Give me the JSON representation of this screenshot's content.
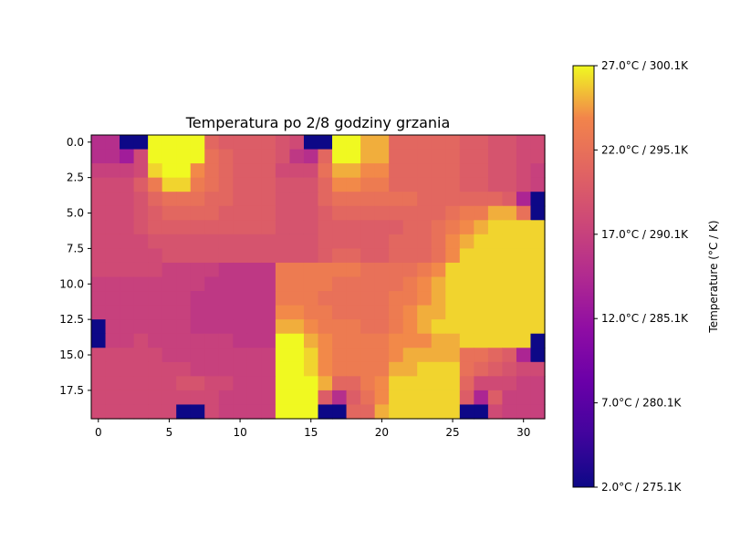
{
  "chart_data": {
    "type": "heatmap",
    "title": "Temperatura po 2/8 godziny grzania",
    "colormap": "plasma",
    "cols": 32,
    "rows": 20,
    "vmin": 2.0,
    "vmax": 27.0,
    "x_ticks": [
      0,
      5,
      10,
      15,
      20,
      25,
      30
    ],
    "x_tick_labels": [
      "0",
      "5",
      "10",
      "15",
      "20",
      "25",
      "30"
    ],
    "y_ticks": [
      0,
      2.5,
      5,
      7.5,
      10,
      12.5,
      15,
      17.5
    ],
    "y_tick_labels": [
      "0.0",
      "2.5",
      "5.0",
      "7.5",
      "10.0",
      "12.5",
      "15.0",
      "17.5"
    ],
    "colorbar": {
      "label": "Temperature (°C / K)",
      "ticks": [
        2.0,
        7.0,
        12.0,
        17.0,
        22.0,
        27.0
      ],
      "tick_labels": [
        "2.0°C / 275.1K",
        "7.0°C / 280.1K",
        "12.0°C / 285.1K",
        "17.0°C / 290.1K",
        "22.0°C / 295.1K",
        "27.0°C / 300.1K"
      ]
    },
    "values": [
      [
        15,
        15,
        2,
        2,
        27,
        27,
        27,
        27,
        21,
        20,
        20,
        20,
        20,
        19,
        18,
        2,
        2,
        27,
        27,
        25,
        25,
        21,
        21,
        21,
        21,
        21,
        20,
        20,
        19,
        19,
        18,
        18
      ],
      [
        15,
        15,
        13,
        18,
        27,
        27,
        27,
        27,
        22,
        21,
        20,
        20,
        20,
        19,
        16,
        15,
        21,
        27,
        27,
        25,
        25,
        21,
        21,
        21,
        21,
        21,
        20,
        20,
        19,
        19,
        18,
        18
      ],
      [
        17,
        17,
        17,
        18,
        26,
        27,
        27,
        24,
        22,
        21,
        20,
        20,
        20,
        18,
        18,
        18,
        22,
        25,
        25,
        24,
        24,
        21,
        21,
        21,
        21,
        21,
        20,
        20,
        19,
        19,
        18,
        17
      ],
      [
        18,
        18,
        18,
        20,
        23,
        26,
        26,
        23,
        22,
        21,
        20,
        20,
        20,
        19,
        19,
        19,
        21,
        24,
        24,
        23,
        23,
        21,
        21,
        21,
        21,
        21,
        20,
        20,
        19,
        19,
        18,
        17
      ],
      [
        18,
        18,
        18,
        19,
        21,
        22,
        22,
        22,
        21,
        21,
        20,
        20,
        20,
        19,
        19,
        19,
        21,
        22,
        22,
        22,
        22,
        22,
        22,
        21,
        21,
        21,
        21,
        21,
        21,
        20,
        14,
        2
      ],
      [
        18,
        18,
        18,
        19,
        20,
        21,
        21,
        21,
        21,
        20,
        20,
        20,
        20,
        19,
        19,
        19,
        20,
        21,
        21,
        21,
        21,
        21,
        21,
        21,
        21,
        22,
        23,
        23,
        25,
        25,
        22,
        2
      ],
      [
        18,
        18,
        18,
        19,
        20,
        20,
        20,
        20,
        20,
        20,
        20,
        20,
        20,
        19,
        19,
        19,
        20,
        20,
        20,
        20,
        20,
        20,
        21,
        21,
        22,
        23,
        24,
        25,
        26,
        26,
        26,
        26
      ],
      [
        18,
        18,
        18,
        18,
        19,
        19,
        19,
        19,
        19,
        19,
        19,
        19,
        19,
        19,
        19,
        19,
        20,
        20,
        20,
        20,
        20,
        21,
        21,
        21,
        22,
        24,
        25,
        26,
        26,
        26,
        26,
        26
      ],
      [
        18,
        18,
        18,
        18,
        18,
        19,
        19,
        19,
        19,
        19,
        19,
        19,
        19,
        19,
        19,
        19,
        20,
        21,
        21,
        20,
        20,
        21,
        21,
        21,
        22,
        24,
        26,
        26,
        26,
        26,
        26,
        26
      ],
      [
        18,
        18,
        18,
        18,
        18,
        17,
        17,
        17,
        17,
        16,
        16,
        16,
        16,
        23,
        23,
        23,
        23,
        23,
        23,
        22,
        22,
        22,
        22,
        23,
        24,
        26,
        26,
        26,
        26,
        26,
        26,
        26
      ],
      [
        17,
        17,
        17,
        17,
        17,
        17,
        17,
        17,
        16,
        16,
        16,
        16,
        16,
        23,
        23,
        23,
        23,
        22,
        22,
        22,
        22,
        22,
        23,
        24,
        25,
        26,
        26,
        26,
        26,
        26,
        26,
        26
      ],
      [
        17,
        17,
        17,
        17,
        17,
        17,
        17,
        16,
        16,
        16,
        16,
        16,
        16,
        23,
        23,
        23,
        22,
        22,
        22,
        22,
        22,
        23,
        23,
        24,
        25,
        26,
        26,
        26,
        26,
        26,
        26,
        26
      ],
      [
        17,
        17,
        17,
        17,
        17,
        17,
        17,
        16,
        16,
        16,
        16,
        16,
        16,
        24,
        24,
        23,
        23,
        22,
        22,
        22,
        22,
        23,
        24,
        25,
        25,
        26,
        26,
        26,
        26,
        26,
        26,
        26
      ],
      [
        2,
        17,
        17,
        17,
        17,
        17,
        17,
        16,
        16,
        16,
        16,
        16,
        16,
        25,
        25,
        24,
        23,
        23,
        23,
        22,
        22,
        23,
        24,
        25,
        26,
        26,
        26,
        26,
        26,
        26,
        26,
        26
      ],
      [
        2,
        17,
        17,
        18,
        17,
        17,
        17,
        17,
        17,
        17,
        16,
        16,
        16,
        27,
        27,
        25,
        24,
        23,
        23,
        23,
        23,
        24,
        24,
        24,
        25,
        25,
        26,
        26,
        26,
        26,
        26,
        2
      ],
      [
        18,
        18,
        18,
        18,
        18,
        17,
        17,
        17,
        17,
        17,
        17,
        17,
        17,
        27,
        27,
        26,
        24,
        23,
        23,
        23,
        23,
        24,
        25,
        25,
        25,
        25,
        22,
        22,
        21,
        20,
        14,
        2
      ],
      [
        18,
        18,
        18,
        18,
        18,
        18,
        18,
        17,
        17,
        17,
        17,
        17,
        17,
        27,
        27,
        26,
        24,
        23,
        23,
        23,
        23,
        25,
        25,
        26,
        26,
        26,
        22,
        21,
        20,
        19,
        18,
        18
      ],
      [
        18,
        18,
        18,
        18,
        18,
        18,
        19,
        19,
        18,
        18,
        17,
        17,
        17,
        27,
        27,
        27,
        25,
        21,
        21,
        23,
        24,
        26,
        26,
        26,
        26,
        26,
        21,
        18,
        18,
        18,
        17,
        17
      ],
      [
        18,
        18,
        18,
        18,
        18,
        18,
        18,
        18,
        18,
        17,
        17,
        17,
        17,
        27,
        27,
        27,
        20,
        15,
        20,
        22,
        24,
        26,
        26,
        26,
        26,
        26,
        20,
        14,
        20,
        17,
        17,
        17
      ],
      [
        18,
        18,
        18,
        18,
        18,
        18,
        2,
        2,
        18,
        17,
        17,
        17,
        17,
        27,
        27,
        27,
        2,
        2,
        21,
        21,
        25,
        26,
        26,
        26,
        26,
        26,
        2,
        2,
        18,
        17,
        17,
        17
      ]
    ]
  }
}
